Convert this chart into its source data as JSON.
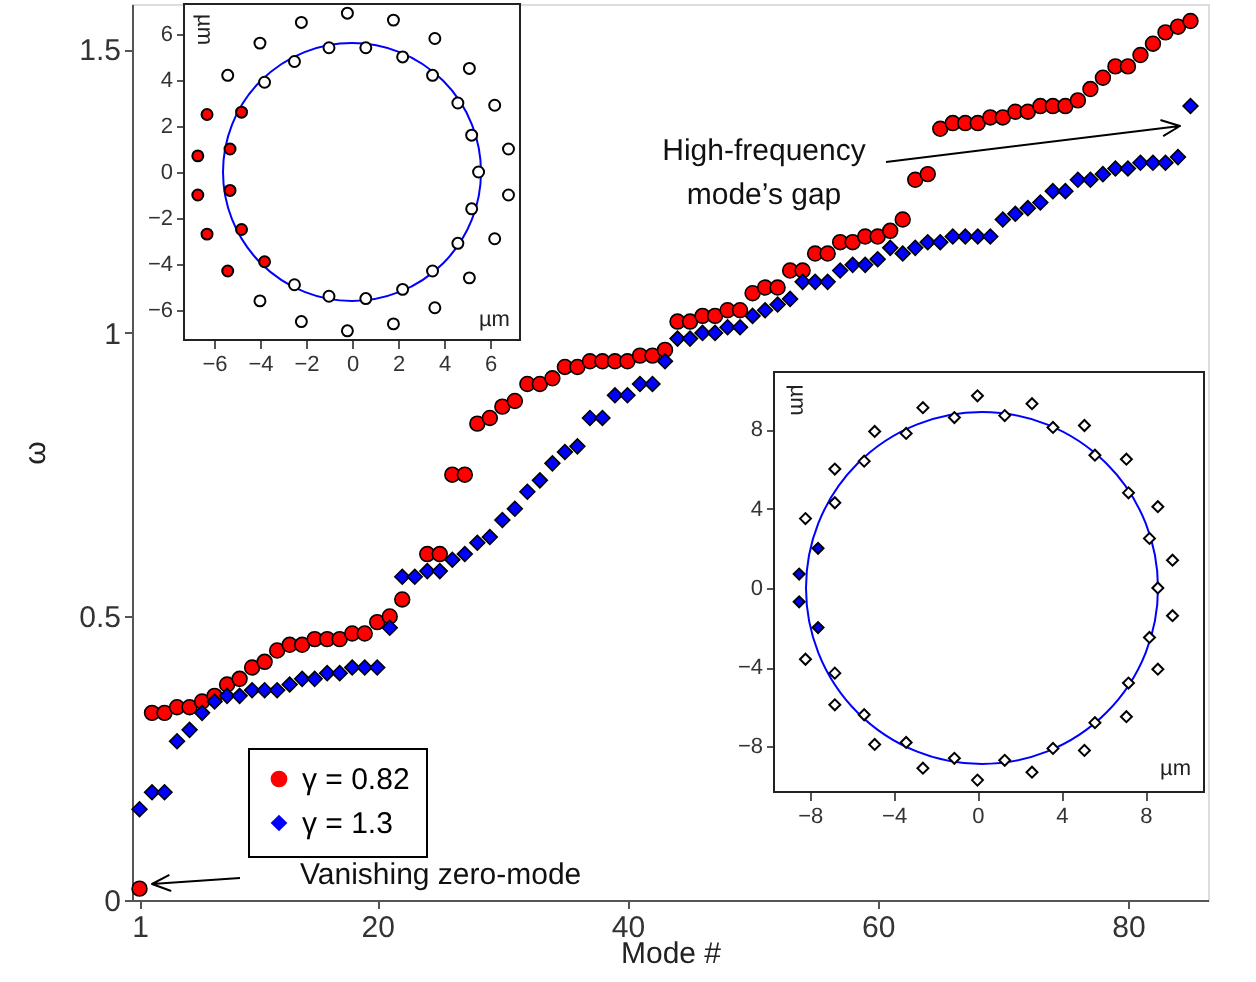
{
  "chart_data": [
    {
      "type": "scatter",
      "xlabel": "Mode #",
      "ylabel": "ω",
      "xlim": [
        0.4,
        86.4
      ],
      "ylim": [
        0,
        1.58
      ],
      "xticks": [
        1,
        20,
        40,
        60,
        80
      ],
      "yticks": [
        0,
        0.5,
        1,
        1.5
      ],
      "legend": "bottom left",
      "x": [
        1,
        2,
        3,
        4,
        5,
        6,
        7,
        8,
        9,
        10,
        11,
        12,
        13,
        14,
        15,
        16,
        17,
        18,
        19,
        20,
        21,
        22,
        23,
        24,
        25,
        26,
        27,
        28,
        29,
        30,
        31,
        32,
        33,
        34,
        35,
        36,
        37,
        38,
        39,
        40,
        41,
        42,
        43,
        44,
        45,
        46,
        47,
        48,
        49,
        50,
        51,
        52,
        53,
        54,
        55,
        56,
        57,
        58,
        59,
        60,
        61,
        62,
        63,
        64,
        65,
        66,
        67,
        68,
        69,
        70,
        71,
        72,
        73,
        74,
        75,
        76,
        77,
        78,
        79,
        80,
        81,
        82,
        83,
        84,
        85
      ],
      "series": [
        {
          "name": "γ = 0.82",
          "color": "#ff0000",
          "marker": "circle",
          "values": [
            0.02,
            0.33,
            0.33,
            0.34,
            0.34,
            0.35,
            0.36,
            0.38,
            0.39,
            0.41,
            0.42,
            0.44,
            0.45,
            0.45,
            0.46,
            0.46,
            0.46,
            0.47,
            0.47,
            0.49,
            0.5,
            0.53,
            null,
            0.61,
            0.61,
            0.75,
            0.75,
            0.84,
            0.85,
            0.87,
            0.88,
            0.91,
            0.91,
            0.92,
            0.94,
            0.94,
            0.95,
            0.95,
            0.95,
            0.95,
            0.96,
            0.96,
            0.97,
            1.02,
            1.02,
            1.03,
            1.03,
            1.04,
            1.04,
            1.07,
            1.08,
            1.08,
            1.11,
            1.11,
            1.14,
            1.14,
            1.16,
            1.16,
            1.17,
            1.17,
            1.18,
            1.2,
            1.27,
            1.28,
            1.36,
            1.37,
            1.37,
            1.37,
            1.38,
            1.38,
            1.39,
            1.39,
            1.4,
            1.4,
            1.4,
            1.41,
            1.43,
            1.45,
            1.47,
            1.47,
            1.49,
            1.51,
            1.53,
            1.54,
            1.55
          ]
        },
        {
          "name": "γ = 1.3",
          "color": "#0000ff",
          "marker": "diamond",
          "values": [
            0.16,
            0.19,
            0.19,
            0.28,
            0.3,
            0.33,
            0.35,
            0.36,
            0.36,
            0.37,
            0.37,
            0.37,
            0.38,
            0.39,
            0.39,
            0.4,
            0.4,
            0.41,
            0.41,
            0.41,
            0.48,
            0.57,
            0.57,
            0.58,
            0.58,
            0.6,
            0.61,
            0.63,
            0.64,
            0.67,
            0.69,
            0.72,
            0.74,
            0.77,
            0.79,
            0.8,
            0.85,
            0.85,
            0.89,
            0.89,
            0.91,
            0.91,
            0.95,
            0.99,
            0.99,
            1.0,
            1.0,
            1.01,
            1.01,
            1.03,
            1.04,
            1.05,
            1.06,
            1.09,
            1.09,
            1.09,
            1.11,
            1.12,
            1.12,
            1.13,
            1.15,
            1.14,
            1.15,
            1.16,
            1.16,
            1.17,
            1.17,
            1.17,
            1.17,
            1.2,
            1.21,
            1.22,
            1.23,
            1.25,
            1.25,
            1.27,
            1.27,
            1.28,
            1.29,
            1.29,
            1.3,
            1.3,
            1.3,
            1.31,
            1.4
          ]
        }
      ],
      "annotations": [
        "Vanishing  zero-mode",
        "High-frequency\nmode’s gap"
      ]
    },
    {
      "type": "scatter",
      "xlabel": "µm",
      "ylabel": "µm",
      "xlim": [
        -7.3,
        7.3
      ],
      "ylim": [
        -7.3,
        7.3
      ],
      "xticks": [
        -6,
        -4,
        -2,
        0,
        2,
        4,
        6
      ],
      "yticks": [
        -6,
        -4,
        -2,
        0,
        2,
        4,
        6
      ],
      "series": [
        {
          "color": "#ffffff",
          "marker": "circle",
          "x": [
            -0.2,
            1.8,
            3.6,
            5.1,
            6.2,
            6.8,
            6.8,
            6.2,
            5.1,
            3.6,
            1.8,
            -0.2,
            -2.2,
            -4.0,
            -2.2,
            -4.0,
            -5.4,
            -1.0,
            0.6,
            2.2,
            3.5,
            4.6,
            5.2,
            5.5,
            5.2,
            4.6,
            3.5,
            2.2,
            0.6,
            -1.0,
            -2.5,
            -2.5,
            -3.8
          ],
          "values": [
            6.9,
            6.6,
            5.8,
            4.5,
            2.9,
            1.0,
            -1.0,
            -2.9,
            -4.6,
            -5.9,
            -6.6,
            -6.9,
            -6.5,
            -5.6,
            6.5,
            5.6,
            4.2,
            5.4,
            5.4,
            5.0,
            4.2,
            3.0,
            1.6,
            0.0,
            -1.6,
            -3.1,
            -4.3,
            -5.1,
            -5.5,
            -5.4,
            -4.9,
            4.8,
            3.9
          ]
        },
        {
          "color": "#ff0000",
          "marker": "circle",
          "x": [
            -6.3,
            -4.8,
            -6.7,
            -5.3,
            -6.7,
            -5.3,
            -6.3,
            -4.8,
            -5.4,
            -3.8
          ],
          "values": [
            2.5,
            2.6,
            0.7,
            1.0,
            -1.0,
            -0.8,
            -2.7,
            -2.5,
            -4.3,
            -3.9
          ]
        }
      ]
    },
    {
      "type": "scatter",
      "xlabel": "µm",
      "ylabel": "µm",
      "xlim": [
        -9.7,
        10.8
      ],
      "ylim": [
        -10.3,
        10.9
      ],
      "xticks": [
        -8,
        -4,
        0,
        4,
        8
      ],
      "yticks": [
        -8,
        -4,
        0,
        4,
        8
      ],
      "series": [
        {
          "color": "#ffffff",
          "marker": "diamond",
          "x": [
            0.0,
            2.6,
            5.1,
            7.1,
            8.6,
            9.3,
            9.3,
            8.6,
            7.1,
            5.1,
            2.6,
            0.0,
            -2.6,
            -4.9,
            -6.8,
            -8.2,
            -8.2,
            -6.8,
            -4.9,
            -2.6,
            -1.1,
            1.3,
            3.6,
            5.6,
            7.2,
            8.2,
            8.6,
            8.2,
            7.2,
            5.6,
            3.6,
            1.3,
            -1.1,
            -3.4,
            -5.4,
            -6.8,
            -6.8,
            -5.4,
            -3.4
          ],
          "values": [
            9.7,
            9.3,
            8.2,
            6.5,
            4.1,
            1.4,
            -1.4,
            -4.1,
            -6.5,
            -8.2,
            -9.3,
            -9.7,
            -9.1,
            -7.9,
            -5.9,
            -3.6,
            3.5,
            6.0,
            7.9,
            9.1,
            8.6,
            8.7,
            8.1,
            6.7,
            4.8,
            2.5,
            0.0,
            -2.5,
            -4.8,
            -6.8,
            -8.1,
            -8.7,
            -8.6,
            -7.8,
            -6.4,
            -4.3,
            4.3,
            6.4,
            7.8
          ]
        },
        {
          "color": "#0000ff",
          "marker": "diamond",
          "x": [
            -7.6,
            -8.5,
            -8.5,
            -7.6
          ],
          "values": [
            2.0,
            0.7,
            -0.7,
            -2.0
          ]
        }
      ]
    }
  ]
}
